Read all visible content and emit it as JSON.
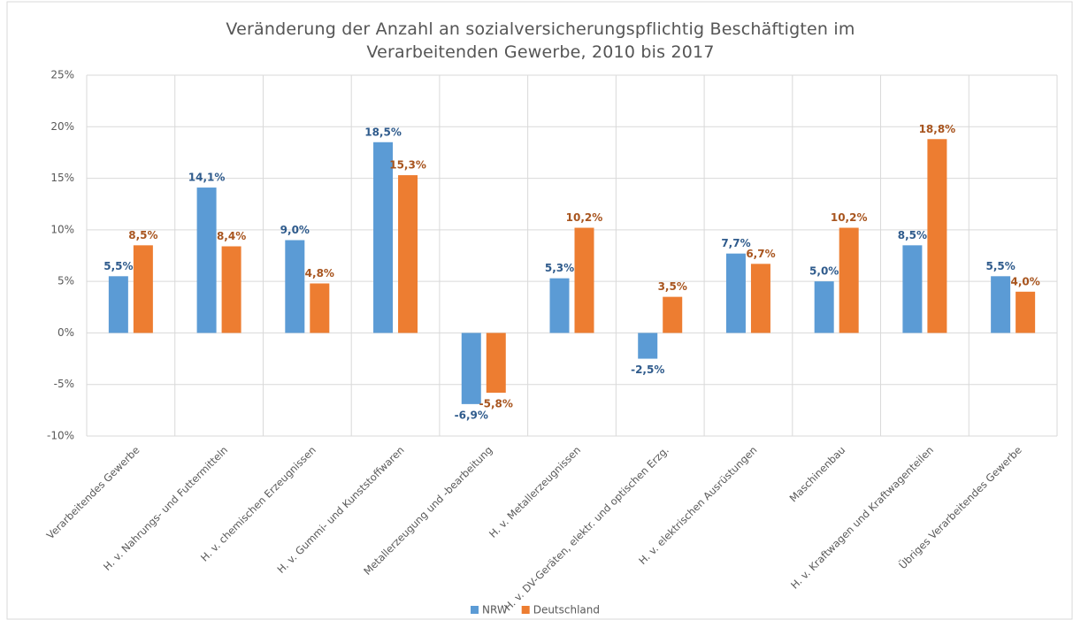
{
  "chart_data": {
    "type": "bar",
    "title": "Veränderung der Anzahl an sozialversicherungspflichtig Beschäftigten im Verarbeitenden Gewerbe, 2010 bis 2017",
    "categories": [
      "Verarbeitendes Gewerbe",
      "H. v. Nahrungs- und Futtermitteln",
      "H. v. chemischen Erzeugnissen",
      "H. v. Gummi- und Kunststoffwaren",
      "Metallerzeugung und -bearbeitung",
      "H. v. Metallerzeugnissen",
      "H. v. DV-Geräten, elektr. und optischen Erzg.",
      "H. v. elektrischen Ausrüstungen",
      "Maschinenbau",
      "H. v. Kraftwagen und Kraftwagenteilen",
      "Übriges Verarbeitendes Gewerbe"
    ],
    "series": [
      {
        "name": "NRW",
        "color": "#5b9bd5",
        "label_color": "#2f5b8c",
        "values": [
          5.5,
          14.1,
          9.0,
          18.5,
          -6.9,
          5.3,
          -2.5,
          7.7,
          5.0,
          8.5,
          5.5
        ],
        "value_labels": [
          "5,5%",
          "14,1%",
          "9,0%",
          "18,5%",
          "-6,9%",
          "5,3%",
          "-2,5%",
          "7,7%",
          "5,0%",
          "8,5%",
          "5,5%"
        ]
      },
      {
        "name": "Deutschland",
        "color": "#ed7d31",
        "label_color": "#a8551f",
        "values": [
          8.5,
          8.4,
          4.8,
          15.3,
          -5.8,
          10.2,
          3.5,
          6.7,
          10.2,
          18.8,
          4.0
        ],
        "value_labels": [
          "8,5%",
          "8,4%",
          "4,8%",
          "15,3%",
          "-5,8%",
          "10,2%",
          "3,5%",
          "6,7%",
          "10,2%",
          "18,8%",
          "4,0%"
        ]
      }
    ],
    "ylim": [
      -10,
      25
    ],
    "yticks": [
      {
        "value": -10,
        "label": "-10%"
      },
      {
        "value": -5,
        "label": "-5%"
      },
      {
        "value": 0,
        "label": "0%"
      },
      {
        "value": 5,
        "label": "5%"
      },
      {
        "value": 10,
        "label": "10%"
      },
      {
        "value": 15,
        "label": "15%"
      },
      {
        "value": 20,
        "label": "20%"
      },
      {
        "value": 25,
        "label": "25%"
      }
    ],
    "grid": true,
    "legend": "bottom"
  }
}
